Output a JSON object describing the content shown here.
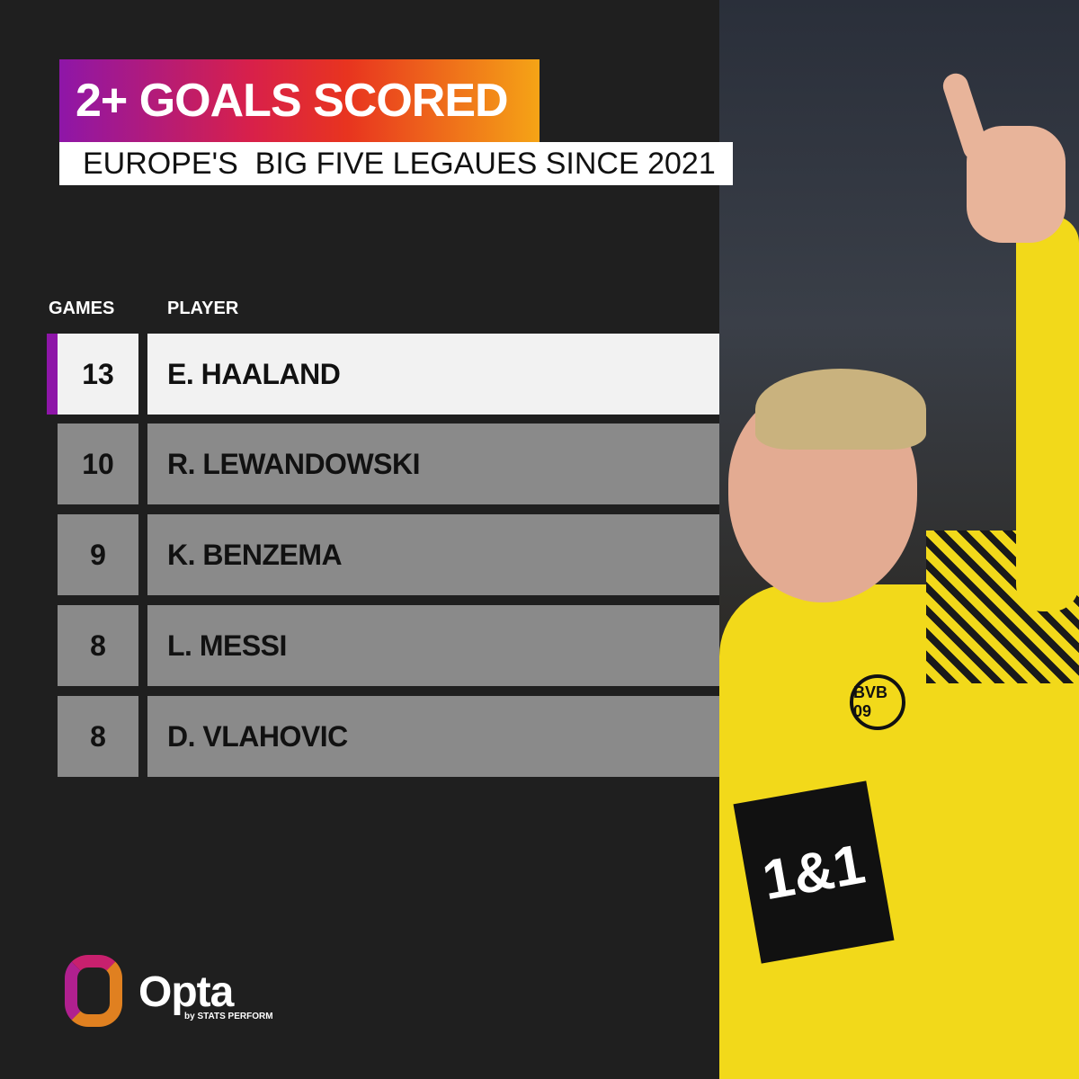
{
  "title": "2+ GOALS SCORED",
  "subtitle": "EUROPE'S  BIG FIVE LEGAUES SINCE 2021",
  "columns": {
    "games": "GAMES",
    "player": "PLAYER"
  },
  "rows": [
    {
      "games": "13",
      "player": "E. HAALAND"
    },
    {
      "games": "10",
      "player": "R. LEWANDOWSKI"
    },
    {
      "games": "9",
      "player": "K. BENZEMA"
    },
    {
      "games": "8",
      "player": "L. MESSI"
    },
    {
      "games": "8",
      "player": "D. VLAHOVIC"
    }
  ],
  "photo": {
    "sponsor": "1&1",
    "badge": "BVB 09"
  },
  "brand": {
    "name": "Opta",
    "tagline": "by STATS PERFORM"
  },
  "colors": {
    "background": "#1f1f1f",
    "highlight_row": "#f2f2f2",
    "row": "#8a8a8a",
    "accent": "#8e16a8",
    "gradient": [
      "#8e16a8",
      "#e8341f",
      "#f5a416"
    ]
  }
}
